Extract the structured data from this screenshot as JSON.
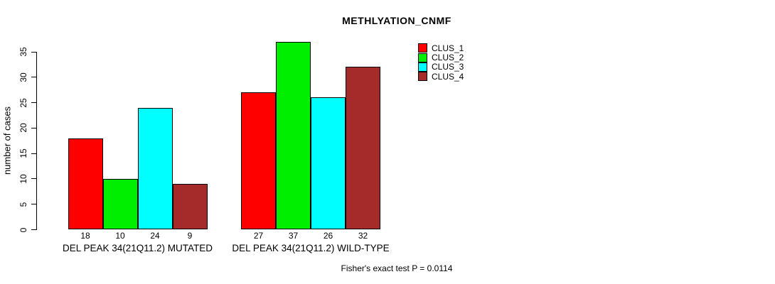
{
  "chart_data": {
    "type": "bar",
    "title": "METHLYATION_CNMF",
    "ylabel": "number of cases",
    "ylim": [
      0,
      35
    ],
    "yticks": [
      0,
      5,
      10,
      15,
      20,
      25,
      30,
      35
    ],
    "grid": false,
    "legend_position": "top-right",
    "categories": [
      "DEL PEAK 34(21Q11.2) MUTATED",
      "DEL PEAK 34(21Q11.2) WILD-TYPE"
    ],
    "series": [
      {
        "name": "CLUS_1",
        "color": "#FF0000",
        "values": [
          18,
          27
        ]
      },
      {
        "name": "CLUS_2",
        "color": "#00EE00",
        "values": [
          10,
          37
        ]
      },
      {
        "name": "CLUS_3",
        "color": "#00FFFF",
        "values": [
          24,
          26
        ]
      },
      {
        "name": "CLUS_4",
        "color": "#A52A2A",
        "values": [
          9,
          32
        ]
      }
    ],
    "bar_value_labels": true,
    "footnote": "Fisher's exact test P = 0.0114"
  }
}
